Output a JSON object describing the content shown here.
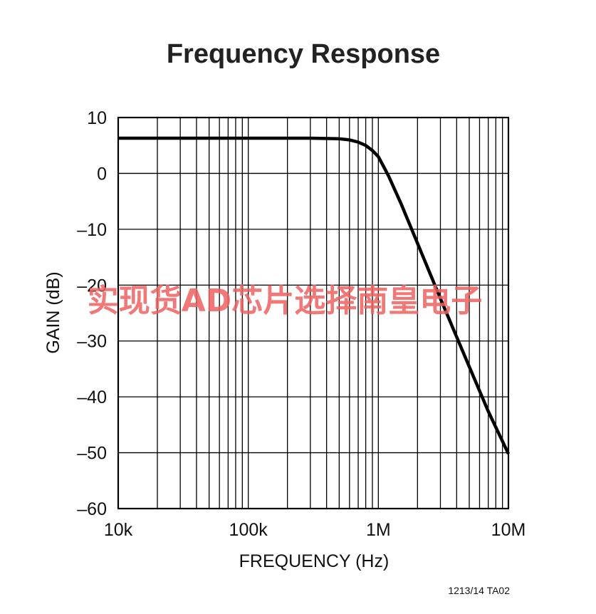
{
  "chart_data": {
    "type": "line",
    "title": "Frequency Response",
    "xlabel": "FREQUENCY (Hz)",
    "ylabel": "GAIN (dB)",
    "x_scale": "log",
    "xlim": [
      10000,
      10000000
    ],
    "ylim": [
      -60,
      10
    ],
    "x_ticks": [
      10000,
      100000,
      1000000,
      10000000
    ],
    "x_tick_labels": [
      "10k",
      "100k",
      "1M",
      "10M"
    ],
    "y_ticks": [
      10,
      0,
      -10,
      -20,
      -30,
      -40,
      -50,
      -60
    ],
    "y_tick_labels": [
      "10",
      "0",
      "–10",
      "–20",
      "–30",
      "–40",
      "–50",
      "–60"
    ],
    "grid": true,
    "series": [
      {
        "x": [
          10000,
          100000,
          300000,
          500000,
          600000,
          700000,
          800000,
          900000,
          1000000,
          1100000,
          1200000,
          1500000,
          2000000,
          3000000,
          5000000,
          7000000,
          10000000
        ],
        "y": [
          6.3,
          6.3,
          6.3,
          6.2,
          6.0,
          5.6,
          5.0,
          4.1,
          3.0,
          1.2,
          -0.5,
          -5.5,
          -12.5,
          -22.4,
          -34.6,
          -42.6,
          -50.2
        ]
      }
    ]
  },
  "figure_code": "1213/14 TA02",
  "watermark": "实现货AD芯片选择南皇电子"
}
